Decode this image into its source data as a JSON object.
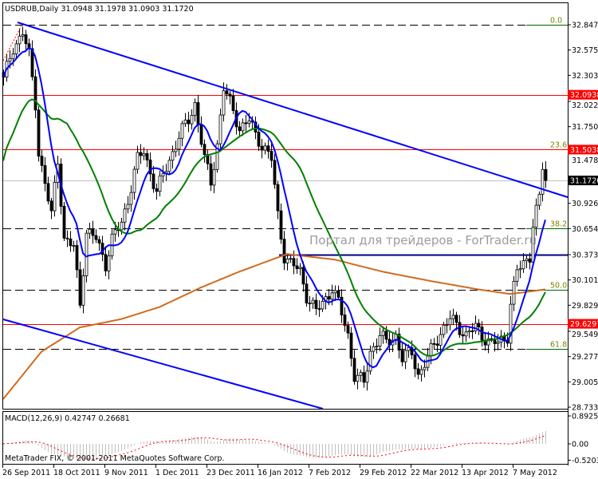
{
  "header": {
    "title": "USDRUB,Daily  31.0948 31.1978 31.0903 31.1720"
  },
  "watermark": "Портал для трейдеров - ForTrader.ru",
  "copyright": "MetaTrader FIX, © 2001-2011 MetaQuotes Software Corp.",
  "colors": {
    "up_body": "#ffffff",
    "down_body": "#000000",
    "ma_fast": "#0000ff",
    "ma_mid": "#008000",
    "ma_slow": "#d2691e",
    "level_red": "#ff0000",
    "trend": "#0000ff",
    "channel_mid": "#000080",
    "macd_hist": "#c0c0c0",
    "macd_signal": "#ff0000"
  },
  "chart_data": {
    "type": "candlestick",
    "symbol": "USDRUB",
    "timeframe": "Daily",
    "ohlc_last": {
      "open": 31.0948,
      "high": 31.1978,
      "low": 31.0903,
      "close": 31.172
    },
    "y_range": [
      28.733,
      32.847
    ],
    "price_ticks": [
      "32.8470",
      "32.5750",
      "32.3030",
      "32.0225",
      "31.7505",
      "31.4785",
      "30.9260",
      "30.6540",
      "30.3735",
      "30.1015",
      "29.8295",
      "29.5490",
      "29.2770",
      "29.0050",
      "28.7330"
    ],
    "price_tick_values": [
      32.847,
      32.575,
      32.303,
      32.0225,
      31.7505,
      31.4785,
      30.926,
      30.654,
      30.3735,
      30.1015,
      29.8295,
      29.549,
      29.277,
      29.005,
      28.733
    ],
    "x_ticks": [
      "26 Sep 2011",
      "18 Oct 2011",
      "9 Nov 2011",
      "1 Dec 2011",
      "23 Dec 2011",
      "16 Jan 2012",
      "7 Feb 2012",
      "29 Feb 2012",
      "22 Mar 2012",
      "13 Apr 2012",
      "7 May 2012"
    ],
    "x_tick_bars": [
      0,
      16,
      32,
      48,
      64,
      80,
      96,
      112,
      128,
      144,
      160
    ],
    "close_waypoints_by_bar": [
      [
        0,
        32.25
      ],
      [
        3,
        32.6
      ],
      [
        6,
        32.77
      ],
      [
        8,
        32.51
      ],
      [
        10,
        32.0
      ],
      [
        11,
        31.48
      ],
      [
        13,
        31.14
      ],
      [
        15,
        30.79
      ],
      [
        17,
        31.4
      ],
      [
        19,
        30.54
      ],
      [
        22,
        30.45
      ],
      [
        24,
        29.85
      ],
      [
        26,
        30.62
      ],
      [
        29,
        30.54
      ],
      [
        32,
        30.28
      ],
      [
        34,
        30.54
      ],
      [
        37,
        30.71
      ],
      [
        39,
        30.97
      ],
      [
        42,
        31.4
      ],
      [
        44,
        31.48
      ],
      [
        48,
        31.05
      ],
      [
        50,
        31.22
      ],
      [
        53,
        31.48
      ],
      [
        55,
        31.65
      ],
      [
        58,
        31.82
      ],
      [
        60,
        32.0
      ],
      [
        63,
        31.4
      ],
      [
        65,
        31.14
      ],
      [
        67,
        31.57
      ],
      [
        69,
        32.17
      ],
      [
        72,
        31.91
      ],
      [
        74,
        31.74
      ],
      [
        77,
        31.82
      ],
      [
        79,
        31.65
      ],
      [
        82,
        31.52
      ],
      [
        84,
        31.4
      ],
      [
        86,
        30.79
      ],
      [
        88,
        30.37
      ],
      [
        90,
        30.28
      ],
      [
        93,
        30.19
      ],
      [
        95,
        29.94
      ],
      [
        98,
        29.76
      ],
      [
        100,
        29.85
      ],
      [
        103,
        30.02
      ],
      [
        105,
        29.85
      ],
      [
        108,
        29.51
      ],
      [
        110,
        29.08
      ],
      [
        113,
        28.99
      ],
      [
        115,
        29.33
      ],
      [
        118,
        29.51
      ],
      [
        120,
        29.42
      ],
      [
        123,
        29.51
      ],
      [
        125,
        29.25
      ],
      [
        128,
        29.33
      ],
      [
        130,
        29.08
      ],
      [
        133,
        29.25
      ],
      [
        135,
        29.42
      ],
      [
        138,
        29.59
      ],
      [
        140,
        29.68
      ],
      [
        143,
        29.59
      ],
      [
        145,
        29.51
      ],
      [
        148,
        29.59
      ],
      [
        150,
        29.51
      ],
      [
        153,
        29.42
      ],
      [
        155,
        29.42
      ],
      [
        158,
        29.51
      ],
      [
        159,
        29.85
      ],
      [
        161,
        30.19
      ],
      [
        163,
        30.28
      ],
      [
        165,
        30.37
      ],
      [
        166,
        30.71
      ],
      [
        168,
        30.97
      ],
      [
        169,
        31.31
      ],
      [
        170,
        31.172
      ]
    ],
    "slow_ma_waypoints_by_bar": [
      [
        0,
        28.82
      ],
      [
        12,
        29.33
      ],
      [
        24,
        29.59
      ],
      [
        37,
        29.68
      ],
      [
        49,
        29.81
      ],
      [
        62,
        30.02
      ],
      [
        74,
        30.19
      ],
      [
        89,
        30.38
      ],
      [
        104,
        30.32
      ],
      [
        119,
        30.19
      ],
      [
        134,
        30.09
      ],
      [
        149,
        30.0
      ],
      [
        159,
        29.95
      ],
      [
        170,
        30.0
      ]
    ],
    "levels": [
      {
        "label": "32.0938",
        "price": 32.0938,
        "color": "#ff0000"
      },
      {
        "label": "31.5038",
        "price": 31.5038,
        "color": "#ff0000"
      },
      {
        "label": "29.6297",
        "price": 29.6297,
        "color": "#ff0000"
      }
    ],
    "current_price_label": "31.1720",
    "fibonacci": [
      {
        "label": "0.0",
        "price": 32.847
      },
      {
        "label": "23.6",
        "price": 31.5038
      },
      {
        "label": "38.2",
        "price": 30.654
      },
      {
        "label": "50.0",
        "price": 29.996
      },
      {
        "label": "61.8",
        "price": 29.36
      }
    ],
    "channel_mid_price": 30.3735,
    "macd": {
      "label": "MACD(12,26,9) 0.42747 0.26681",
      "params": [
        12,
        26,
        9
      ],
      "main": 0.42747,
      "signal": 0.26681,
      "y_range": [
        -0.52038,
        0.89258
      ],
      "ticks": [
        "0.89258",
        "0.00",
        "-0.52038"
      ],
      "tick_values": [
        0.89258,
        0,
        -0.52038
      ]
    }
  }
}
